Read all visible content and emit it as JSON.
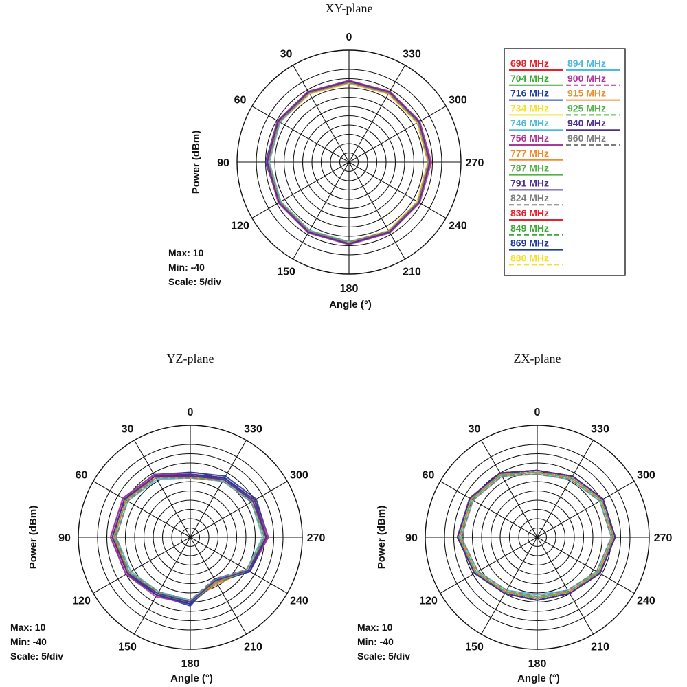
{
  "chart_data": [
    {
      "type": "polar",
      "title": "XY-plane",
      "xlabel": "Angle  (°)",
      "ylabel": "Power  (dBm)",
      "angle_ticks": [
        "0",
        "30",
        "60",
        "90",
        "120",
        "150",
        "180",
        "210",
        "240",
        "270",
        "300",
        "330"
      ],
      "rlim": [
        -40,
        10
      ],
      "grid": true,
      "info": [
        "Max: 10",
        "Min: -40",
        "Scale: 5/div"
      ],
      "angles": [
        0,
        30,
        60,
        90,
        120,
        150,
        180,
        210,
        240,
        270,
        300,
        330
      ],
      "series": [
        {
          "name": "698 MHz",
          "values": [
            4,
            4,
            4.5,
            4,
            3.5,
            3.5,
            4,
            4,
            3.5,
            4,
            4,
            4
          ]
        },
        {
          "name": "704 MHz",
          "values": [
            3.5,
            3.5,
            4,
            4,
            3,
            3.5,
            3.5,
            3.5,
            3.5,
            3.5,
            3.5,
            3.5
          ]
        },
        {
          "name": "716 MHz",
          "values": [
            3.5,
            4,
            4.5,
            5,
            3.5,
            4,
            4,
            3.5,
            3.5,
            3.5,
            3.5,
            3.5
          ]
        },
        {
          "name": "734 MHz",
          "values": [
            3,
            3,
            3.5,
            3.5,
            3,
            3,
            3.5,
            3,
            3,
            3,
            3,
            3
          ]
        },
        {
          "name": "746 MHz",
          "values": [
            3,
            3,
            3,
            3.5,
            2.5,
            3,
            3,
            3,
            3,
            3,
            3,
            3
          ]
        },
        {
          "name": "756 MHz",
          "values": [
            4,
            4,
            4.5,
            4.5,
            4,
            4,
            4.5,
            4,
            4,
            4.5,
            4,
            4
          ]
        },
        {
          "name": "777 MHz",
          "values": [
            2.5,
            2.5,
            3,
            3,
            2.5,
            2.5,
            3,
            3,
            2.5,
            2.5,
            2.5,
            2.5
          ]
        },
        {
          "name": "787 MHz",
          "values": [
            3,
            3,
            3.5,
            3.5,
            3,
            3,
            3,
            3,
            3,
            3,
            3,
            3
          ]
        },
        {
          "name": "791 MHz",
          "values": [
            3.5,
            3.5,
            4,
            4,
            3.5,
            3.5,
            4,
            3.5,
            3.5,
            3.5,
            3.5,
            3.5
          ]
        },
        {
          "name": "824 MHz",
          "values": [
            3,
            3,
            3.5,
            3,
            2.5,
            2.5,
            3,
            3,
            3,
            3,
            3,
            3
          ]
        },
        {
          "name": "836 MHz",
          "values": [
            3.5,
            3.5,
            4,
            3.5,
            3,
            3,
            3.5,
            3.5,
            3.5,
            3.5,
            3.5,
            3.5
          ]
        },
        {
          "name": "849 MHz",
          "values": [
            3,
            3,
            3.5,
            3.5,
            3,
            3,
            3,
            3,
            3,
            3,
            3,
            3
          ]
        },
        {
          "name": "869 MHz",
          "values": [
            3.5,
            3.5,
            4,
            4,
            3.5,
            3.5,
            4,
            3.5,
            3.5,
            3.5,
            3.5,
            3.5
          ]
        },
        {
          "name": "880 MHz",
          "values": [
            2.5,
            2.5,
            3,
            3,
            2.5,
            2.5,
            3,
            2.5,
            2.5,
            2.5,
            2.5,
            2.5
          ]
        },
        {
          "name": "894 MHz",
          "values": [
            3,
            3,
            3,
            3,
            2.5,
            2.5,
            3,
            3,
            3,
            3,
            3,
            3
          ]
        },
        {
          "name": "900 MHz",
          "values": [
            3.5,
            3.5,
            4,
            4,
            3.5,
            3.5,
            4,
            4,
            3.5,
            3.5,
            3.5,
            3.5
          ]
        },
        {
          "name": "915 MHz",
          "values": [
            3,
            3,
            3.5,
            3.5,
            3,
            3,
            3.5,
            3,
            3,
            3,
            3,
            3
          ]
        },
        {
          "name": "925 MHz",
          "values": [
            3,
            3,
            3.5,
            3.5,
            3,
            3,
            3.5,
            3,
            3,
            3,
            3,
            3
          ]
        },
        {
          "name": "940 MHz",
          "values": [
            3.5,
            3.5,
            4,
            4,
            3.5,
            3.5,
            4,
            3.5,
            3.5,
            3.5,
            3.5,
            3.5
          ]
        },
        {
          "name": "960 MHz",
          "values": [
            3,
            3,
            3.5,
            3.5,
            3,
            3,
            3,
            3,
            3,
            3,
            3,
            3
          ]
        }
      ]
    },
    {
      "type": "polar",
      "title": "YZ-plane",
      "xlabel": "Angle  (°)",
      "ylabel": "Power  (dBm)",
      "angle_ticks": [
        "0",
        "30",
        "60",
        "90",
        "120",
        "150",
        "180",
        "210",
        "240",
        "270",
        "300",
        "330"
      ],
      "rlim": [
        -40,
        10
      ],
      "grid": true,
      "info": [
        "Max: 10",
        "Min: -40",
        "Scale: 5/div"
      ],
      "angles": [
        0,
        30,
        60,
        90,
        120,
        150,
        180,
        210,
        240,
        270,
        300,
        330
      ],
      "series": [
        {
          "name": "698 MHz",
          "values": [
            -6,
            -1,
            2,
            3,
            0,
            -4,
            -4,
            -13,
            -3,
            2,
            0,
            -3
          ]
        },
        {
          "name": "704 MHz",
          "values": [
            -7,
            -2,
            1,
            2,
            -1,
            -5,
            -5,
            -12,
            -4,
            1,
            -1,
            -4
          ]
        },
        {
          "name": "716 MHz",
          "values": [
            -5,
            -1,
            2,
            3,
            0,
            -4,
            -3,
            -14,
            -3,
            2,
            1,
            -2
          ]
        },
        {
          "name": "734 MHz",
          "values": [
            -8,
            -3,
            0,
            1,
            -2,
            -6,
            -5,
            -12,
            -5,
            0,
            -2,
            -5
          ]
        },
        {
          "name": "746 MHz",
          "values": [
            -7,
            -3,
            0,
            1,
            -2,
            -5,
            -6,
            -13,
            -4,
            0,
            -1,
            -4
          ]
        },
        {
          "name": "756 MHz",
          "values": [
            -6,
            -1,
            2,
            3,
            0,
            -3,
            -4,
            -12,
            -3,
            2,
            0,
            -3
          ]
        },
        {
          "name": "777 MHz",
          "values": [
            -8,
            -3,
            0,
            1,
            -2,
            -5,
            -5,
            -11,
            -4,
            1,
            -1,
            -4
          ]
        },
        {
          "name": "787 MHz",
          "values": [
            -7,
            -2,
            1,
            2,
            -1,
            -4,
            -5,
            -12,
            -4,
            1,
            -1,
            -4
          ]
        },
        {
          "name": "791 MHz",
          "values": [
            -6,
            -2,
            1,
            2,
            -1,
            -4,
            -4,
            -13,
            -3,
            1,
            0,
            -3
          ]
        },
        {
          "name": "824 MHz",
          "values": [
            -8,
            -3,
            -1,
            0,
            -2,
            -6,
            -6,
            -14,
            -5,
            0,
            -2,
            -5
          ]
        },
        {
          "name": "836 MHz",
          "values": [
            -7,
            -2,
            0,
            1,
            -1,
            -5,
            -5,
            -13,
            -4,
            1,
            -1,
            -4
          ]
        },
        {
          "name": "849 MHz",
          "values": [
            -8,
            -3,
            0,
            1,
            -2,
            -5,
            -5,
            -12,
            -4,
            0,
            -1,
            -4
          ]
        },
        {
          "name": "869 MHz",
          "values": [
            -7,
            -2,
            1,
            2,
            -1,
            -4,
            -4,
            -12,
            -3,
            1,
            -1,
            -3
          ]
        },
        {
          "name": "880 MHz",
          "values": [
            -8,
            -4,
            -1,
            0,
            -3,
            -6,
            -6,
            -13,
            -5,
            0,
            -2,
            -5
          ]
        },
        {
          "name": "894 MHz",
          "values": [
            -8,
            -4,
            -1,
            0,
            -3,
            -6,
            -6,
            -13,
            -5,
            -1,
            -2,
            -5
          ]
        },
        {
          "name": "900 MHz",
          "values": [
            -7,
            -2,
            1,
            2,
            -1,
            -5,
            -5,
            -12,
            -4,
            1,
            -1,
            -4
          ]
        },
        {
          "name": "915 MHz",
          "values": [
            -8,
            -3,
            0,
            1,
            -2,
            -5,
            -5,
            -12,
            -4,
            0,
            -1,
            -4
          ]
        },
        {
          "name": "925 MHz",
          "values": [
            -8,
            -3,
            0,
            1,
            -2,
            -5,
            -5,
            -12,
            -4,
            0,
            -1,
            -4
          ]
        },
        {
          "name": "940 MHz",
          "values": [
            -7,
            -2,
            1,
            2,
            -1,
            -5,
            -5,
            -13,
            -4,
            1,
            -1,
            -4
          ]
        },
        {
          "name": "960 MHz",
          "values": [
            -8,
            -3,
            -1,
            0,
            -2,
            -6,
            -6,
            -14,
            -5,
            0,
            -2,
            -5
          ]
        }
      ]
    },
    {
      "type": "polar",
      "title": "ZX-plane",
      "xlabel": "Angle  (°)",
      "ylabel": "Power  (dBm)",
      "angle_ticks": [
        "0",
        "30",
        "60",
        "90",
        "120",
        "150",
        "180",
        "210",
        "240",
        "270",
        "300",
        "330"
      ],
      "rlim": [
        -40,
        10
      ],
      "grid": true,
      "info": [
        "Max: 10",
        "Min: -40",
        "Scale: 5/div"
      ],
      "angles": [
        0,
        30,
        60,
        90,
        120,
        150,
        180,
        210,
        240,
        270,
        300,
        330
      ],
      "series": [
        {
          "name": "698 MHz",
          "values": [
            -4,
            0,
            2,
            3,
            -1,
            -5,
            -6,
            -5,
            -1,
            2,
            1,
            -2
          ]
        },
        {
          "name": "704 MHz",
          "values": [
            -5,
            -1,
            1,
            2,
            -2,
            -6,
            -7,
            -6,
            -2,
            1,
            0,
            -3
          ]
        },
        {
          "name": "716 MHz",
          "values": [
            -4,
            0,
            2,
            3,
            -1,
            -5,
            -6,
            -5,
            -1,
            2,
            1,
            -2
          ]
        },
        {
          "name": "734 MHz",
          "values": [
            -6,
            -2,
            0,
            1,
            -3,
            -7,
            -8,
            -7,
            -3,
            0,
            -1,
            -4
          ]
        },
        {
          "name": "746 MHz",
          "values": [
            -5,
            -1,
            1,
            2,
            -2,
            -6,
            -8,
            -6,
            -2,
            1,
            0,
            -3
          ]
        },
        {
          "name": "756 MHz",
          "values": [
            -4,
            0,
            2,
            3,
            -1,
            -5,
            -6,
            -5,
            -1,
            2,
            1,
            -2
          ]
        },
        {
          "name": "777 MHz",
          "values": [
            -5,
            -1,
            1,
            2,
            -2,
            -6,
            -7,
            -6,
            -2,
            1,
            0,
            -3
          ]
        },
        {
          "name": "787 MHz",
          "values": [
            -5,
            -1,
            1,
            2,
            -2,
            -6,
            -7,
            -6,
            -2,
            1,
            0,
            -3
          ]
        },
        {
          "name": "791 MHz",
          "values": [
            -4,
            0,
            2,
            3,
            -1,
            -5,
            -6,
            -5,
            -1,
            2,
            1,
            -2
          ]
        },
        {
          "name": "824 MHz",
          "values": [
            -6,
            -2,
            0,
            1,
            -3,
            -7,
            -8,
            -7,
            -3,
            0,
            -1,
            -4
          ]
        },
        {
          "name": "836 MHz",
          "values": [
            -5,
            -1,
            1,
            2,
            -2,
            -6,
            -7,
            -6,
            -2,
            1,
            0,
            -3
          ]
        },
        {
          "name": "849 MHz",
          "values": [
            -5,
            -1,
            1,
            2,
            -2,
            -6,
            -7,
            -6,
            -2,
            1,
            0,
            -3
          ]
        },
        {
          "name": "869 MHz",
          "values": [
            -4,
            0,
            2,
            3,
            -1,
            -5,
            -6,
            -5,
            -1,
            2,
            1,
            -2
          ]
        },
        {
          "name": "880 MHz",
          "values": [
            -6,
            -2,
            0,
            1,
            -3,
            -7,
            -8,
            -7,
            -3,
            0,
            -1,
            -4
          ]
        },
        {
          "name": "894 MHz",
          "values": [
            -6,
            -2,
            0,
            1,
            -3,
            -7,
            -9,
            -7,
            -3,
            0,
            -1,
            -4
          ]
        },
        {
          "name": "900 MHz",
          "values": [
            -5,
            -1,
            1,
            2,
            -2,
            -6,
            -7,
            -6,
            -2,
            1,
            0,
            -3
          ]
        },
        {
          "name": "915 MHz",
          "values": [
            -5,
            -1,
            1,
            2,
            -2,
            -6,
            -7,
            -6,
            -2,
            1,
            0,
            -3
          ]
        },
        {
          "name": "925 MHz",
          "values": [
            -5,
            -1,
            1,
            2,
            -2,
            -6,
            -7,
            -6,
            -2,
            1,
            0,
            -3
          ]
        },
        {
          "name": "940 MHz",
          "values": [
            -4,
            0,
            2,
            3,
            -1,
            -5,
            -6,
            -5,
            -1,
            2,
            1,
            -2
          ]
        },
        {
          "name": "960 MHz",
          "values": [
            -6,
            -2,
            0,
            1,
            -3,
            -7,
            -8,
            -7,
            -3,
            0,
            -1,
            -4
          ]
        }
      ]
    }
  ],
  "legend": {
    "items": [
      {
        "label": "698 MHz",
        "color": "#e8202a"
      },
      {
        "label": "704 MHz",
        "color": "#3aa935"
      },
      {
        "label": "716 MHz",
        "color": "#1f3a9e"
      },
      {
        "label": "734 MHz",
        "color": "#f5e02a"
      },
      {
        "label": "746 MHz",
        "color": "#4fb8e0"
      },
      {
        "label": "756 MHz",
        "color": "#b0379a"
      },
      {
        "label": "777 MHz",
        "color": "#f08a2a"
      },
      {
        "label": "787 MHz",
        "color": "#55b04a"
      },
      {
        "label": "791 MHz",
        "color": "#4b2f93"
      },
      {
        "label": "824 MHz",
        "color": "#7d7d7d"
      },
      {
        "label": "836 MHz",
        "color": "#e8202a"
      },
      {
        "label": "849 MHz",
        "color": "#3aa935"
      },
      {
        "label": "869 MHz",
        "color": "#1f3a9e"
      },
      {
        "label": "880 MHz",
        "color": "#f5e02a"
      },
      {
        "label": "894 MHz",
        "color": "#4fb8e0"
      },
      {
        "label": "900 MHz",
        "color": "#b0379a"
      },
      {
        "label": "915 MHz",
        "color": "#f08a2a"
      },
      {
        "label": "925 MHz",
        "color": "#55b04a"
      },
      {
        "label": "940 MHz",
        "color": "#4b2f93"
      },
      {
        "label": "960 MHz",
        "color": "#7d7d7d"
      }
    ]
  }
}
